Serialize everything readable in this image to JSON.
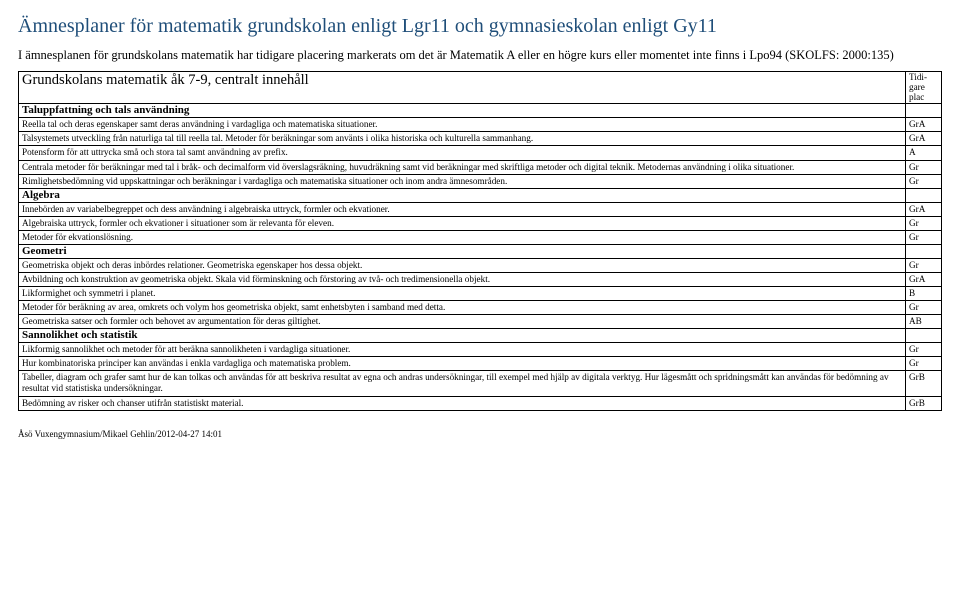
{
  "title": "Ämnesplaner för matematik grundskolan enligt Lgr11 och gymnasieskolan enligt Gy11",
  "intro": "I ämnesplanen för grundskolans matematik har tidigare placering markerats om det är Matematik A eller en högre kurs eller momentet inte finns i Lpo94 (SKOLFS: 2000:135)",
  "subheader": "Grundskolans matematik åk 7-9, centralt innehåll",
  "col_head": "Tidi-\ngare\nplac",
  "rows": [
    {
      "kind": "cat",
      "text": "Taluppfattning och tals användning",
      "tag": ""
    },
    {
      "kind": "item",
      "text": "Reella tal och deras egenskaper samt deras användning i vardagliga och matematiska situationer.",
      "tag": "GrA"
    },
    {
      "kind": "item",
      "text": "Talsystemets utveckling från naturliga tal till reella tal. Metoder för beräkningar som använts i olika historiska och kulturella sammanhang.",
      "tag": "GrA"
    },
    {
      "kind": "item",
      "text": "Potensform för att uttrycka små och stora tal samt användning av prefix.",
      "tag": "A"
    },
    {
      "kind": "item",
      "text": "Centrala metoder för beräkningar med tal i bråk- och decimalform vid överslagsräkning, huvudräkning samt vid beräkningar med skriftliga metoder och digital teknik. Metodernas användning i olika situationer.",
      "tag": "Gr"
    },
    {
      "kind": "item",
      "text": "Rimlighetsbedömning vid uppskattningar och beräkningar i vardagliga och matematiska situationer och inom andra ämnesområden.",
      "tag": "Gr"
    },
    {
      "kind": "cat",
      "text": "Algebra",
      "tag": ""
    },
    {
      "kind": "item",
      "text": "Innebörden av variabelbegreppet och dess användning i algebraiska uttryck, formler och ekvationer.",
      "tag": "GrA"
    },
    {
      "kind": "item",
      "text": "Algebraiska uttryck, formler och ekvationer i situationer som är relevanta för eleven.",
      "tag": "Gr"
    },
    {
      "kind": "item",
      "text": "Metoder för ekvationslösning.",
      "tag": "Gr"
    },
    {
      "kind": "cat",
      "text": "Geometri",
      "tag": ""
    },
    {
      "kind": "item",
      "text": "Geometriska objekt och deras inbördes relationer. Geometriska egenskaper hos dessa objekt.",
      "tag": "Gr"
    },
    {
      "kind": "item",
      "text": "Avbildning och konstruktion av geometriska objekt. Skala vid förminskning och förstoring av två- och tredimensionella objekt.",
      "tag": "GrA"
    },
    {
      "kind": "item",
      "text": "Likformighet och symmetri i planet.",
      "tag": "B"
    },
    {
      "kind": "item",
      "text": "Metoder för beräkning av area, omkrets och volym hos geometriska objekt, samt enhetsbyten i samband med detta.",
      "tag": "Gr"
    },
    {
      "kind": "item",
      "text": "Geometriska satser och formler och behovet av argumentation för deras giltighet.",
      "tag": "AB"
    },
    {
      "kind": "cat",
      "text": "Sannolikhet och statistik",
      "tag": ""
    },
    {
      "kind": "item",
      "text": "Likformig sannolikhet och metoder för att beräkna sannolikheten i vardagliga situationer.",
      "tag": "Gr"
    },
    {
      "kind": "item",
      "text": "Hur kombinatoriska principer kan användas i enkla vardagliga och matematiska problem.",
      "tag": "Gr"
    },
    {
      "kind": "item",
      "text": "Tabeller, diagram och grafer samt hur de kan tolkas och användas för att beskriva resultat av egna och andras undersökningar, till exempel med hjälp av digitala verktyg. Hur lägesmått och spridningsmått kan användas för bedömning av resultat vid statistiska undersökningar.",
      "tag": "GrB"
    },
    {
      "kind": "item",
      "text": "Bedömning av risker och chanser utifrån statistiskt material.",
      "tag": "GrB"
    }
  ],
  "footer": "Åsö Vuxengymnasium/Mikael Gehlin/2012-04-27 14:01"
}
